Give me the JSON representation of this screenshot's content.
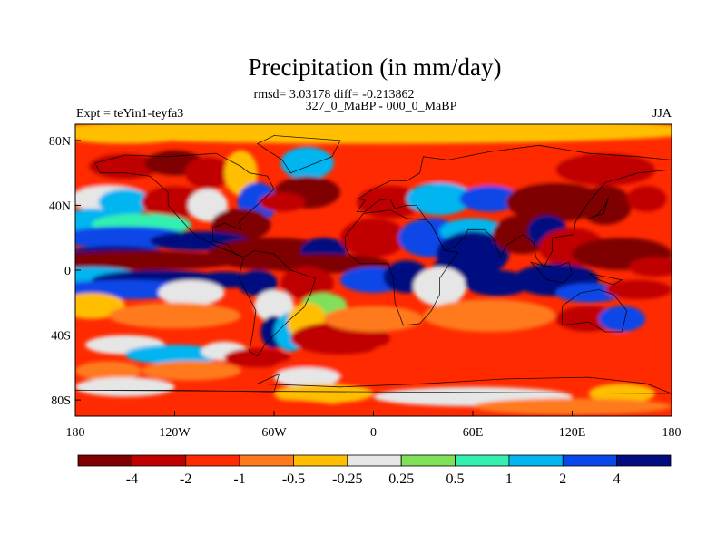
{
  "title": "Precipitation (in mm/day)",
  "stats_line": "rmsd= 3.03178 diff= -0.213862",
  "comparison": "327_0_MaBP - 000_0_MaBP",
  "experiment": "Expt = teYin1-teyfa3",
  "season": "JJA",
  "map": {
    "lon_range": [
      -180,
      180
    ],
    "lat_range": [
      -90,
      90
    ],
    "x_ticks": [
      "180",
      "120W",
      "60W",
      "0",
      "60E",
      "120E",
      "180"
    ],
    "y_ticks": [
      "80N",
      "40N",
      "0",
      "40S",
      "80S"
    ]
  },
  "colorbar": {
    "colors": [
      "#7f0000",
      "#c00000",
      "#ff2a00",
      "#ff7a1a",
      "#ffbf00",
      "#e6e6e6",
      "#7fe05a",
      "#33f0b0",
      "#00b5f0",
      "#0a47e8",
      "#000c80"
    ],
    "labels": [
      "-4",
      "-2",
      "-1",
      "-0.5",
      "-0.25",
      "0.25",
      "0.5",
      "1",
      "2",
      "4"
    ]
  }
}
